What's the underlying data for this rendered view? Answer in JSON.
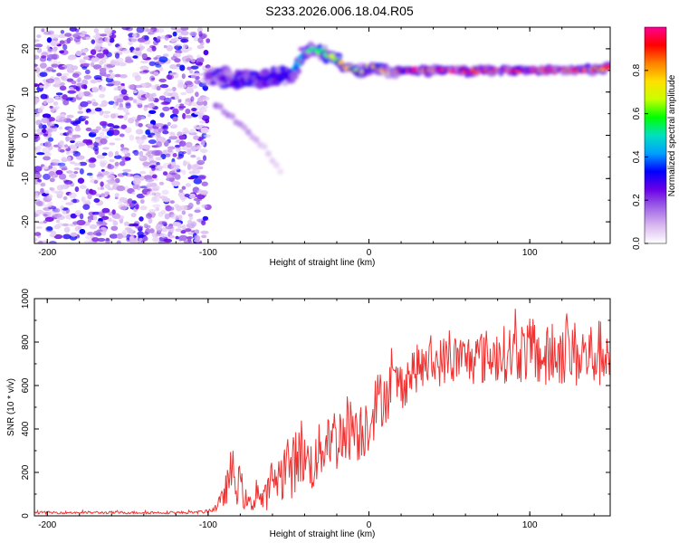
{
  "title": "S233.2026.006.18.04.R05",
  "charts": [
    {
      "type": "heatmap",
      "xlabel": "Height of straight line (km)",
      "ylabel": "Frequency (Hz)",
      "xlim": [
        -208,
        150
      ],
      "ylim": [
        -25,
        25
      ],
      "xticks": [
        -200,
        -100,
        0,
        100
      ],
      "yticks": [
        -20,
        -10,
        0,
        10,
        20
      ],
      "colorbar": {
        "label": "Normalized spectral amplitude",
        "range": [
          0.0,
          1.0
        ],
        "ticks": [
          0.0,
          0.2,
          0.4,
          0.6,
          0.8
        ],
        "tick_labels": [
          "0.0",
          "0.2",
          "0.4",
          "0.6",
          "0.8"
        ],
        "colors": [
          "#ffffff",
          "#d9b8f0",
          "#a064e6",
          "#6a00e6",
          "#0000ff",
          "#00a0ff",
          "#00e0c0",
          "#00ff00",
          "#c8ff00",
          "#ffe000",
          "#ff8000",
          "#ff0000",
          "#ff0090"
        ]
      },
      "noise_region_x": [
        -208,
        -100
      ],
      "track": {
        "x": [
          -100,
          -90,
          -80,
          -70,
          -60,
          -50,
          -45,
          -40,
          -35,
          -30,
          -25,
          -20,
          -15,
          -10,
          -5,
          0,
          5,
          10,
          15,
          20,
          40,
          60,
          80,
          100,
          120,
          150
        ],
        "freq": [
          14,
          13,
          12.5,
          13,
          13.5,
          14,
          16,
          19,
          20,
          19.5,
          18.5,
          17,
          16,
          15,
          14.5,
          16,
          15.5,
          15,
          14.5,
          15,
          15,
          15,
          15,
          15,
          15,
          15.5
        ],
        "amplitude": [
          0.22,
          0.25,
          0.28,
          0.3,
          0.3,
          0.3,
          0.4,
          0.45,
          0.5,
          0.55,
          0.6,
          0.65,
          0.7,
          0.7,
          0.6,
          0.7,
          0.75,
          0.8,
          0.85,
          0.9,
          0.92,
          0.95,
          0.95,
          0.97,
          0.97,
          0.8
        ]
      },
      "secondary_branch": {
        "x": [
          -95,
          -85,
          -75,
          -65,
          -55
        ],
        "freq": [
          7,
          4,
          1,
          -3,
          -8
        ],
        "amplitude": [
          0.15,
          0.12,
          0.1,
          0.06,
          0.04
        ]
      }
    },
    {
      "type": "line",
      "xlabel": "Height of straight line (km)",
      "ylabel": "SNR (10 * v/v)",
      "xlim": [
        -208,
        150
      ],
      "ylim": [
        0,
        1000
      ],
      "xticks": [
        -200,
        -100,
        0,
        100
      ],
      "yticks": [
        0,
        200,
        400,
        600,
        800,
        1000
      ],
      "series": [
        {
          "name": "SNR",
          "color": "#ee3333",
          "x": [
            -208,
            -110,
            -100,
            -95,
            -90,
            -88,
            -85,
            -82,
            -80,
            -78,
            -75,
            -72,
            -70,
            -68,
            -65,
            -60,
            -55,
            -52,
            -50,
            -48,
            -45,
            -42,
            -40,
            -38,
            -35,
            -32,
            -30,
            -25,
            -20,
            -15,
            -10,
            -5,
            0,
            5,
            10,
            15,
            20,
            25,
            30,
            40,
            50,
            60,
            70,
            80,
            90,
            100,
            110,
            120,
            130,
            140,
            150
          ],
          "y": [
            15,
            15,
            20,
            40,
            90,
            150,
            210,
            130,
            160,
            90,
            60,
            50,
            140,
            80,
            70,
            170,
            180,
            230,
            250,
            200,
            280,
            300,
            260,
            250,
            230,
            260,
            310,
            380,
            350,
            400,
            420,
            390,
            450,
            520,
            560,
            600,
            600,
            650,
            680,
            700,
            720,
            720,
            730,
            740,
            750,
            760,
            720,
            760,
            740,
            740,
            760
          ],
          "noise": [
            6,
            6,
            8,
            20,
            50,
            90,
            120,
            80,
            90,
            60,
            40,
            35,
            90,
            60,
            60,
            110,
            110,
            140,
            160,
            140,
            150,
            160,
            130,
            130,
            120,
            130,
            150,
            160,
            150,
            160,
            160,
            150,
            160,
            140,
            140,
            130,
            120,
            120,
            110,
            110,
            120,
            120,
            130,
            130,
            140,
            150,
            150,
            160,
            160,
            160,
            160
          ]
        }
      ]
    }
  ]
}
